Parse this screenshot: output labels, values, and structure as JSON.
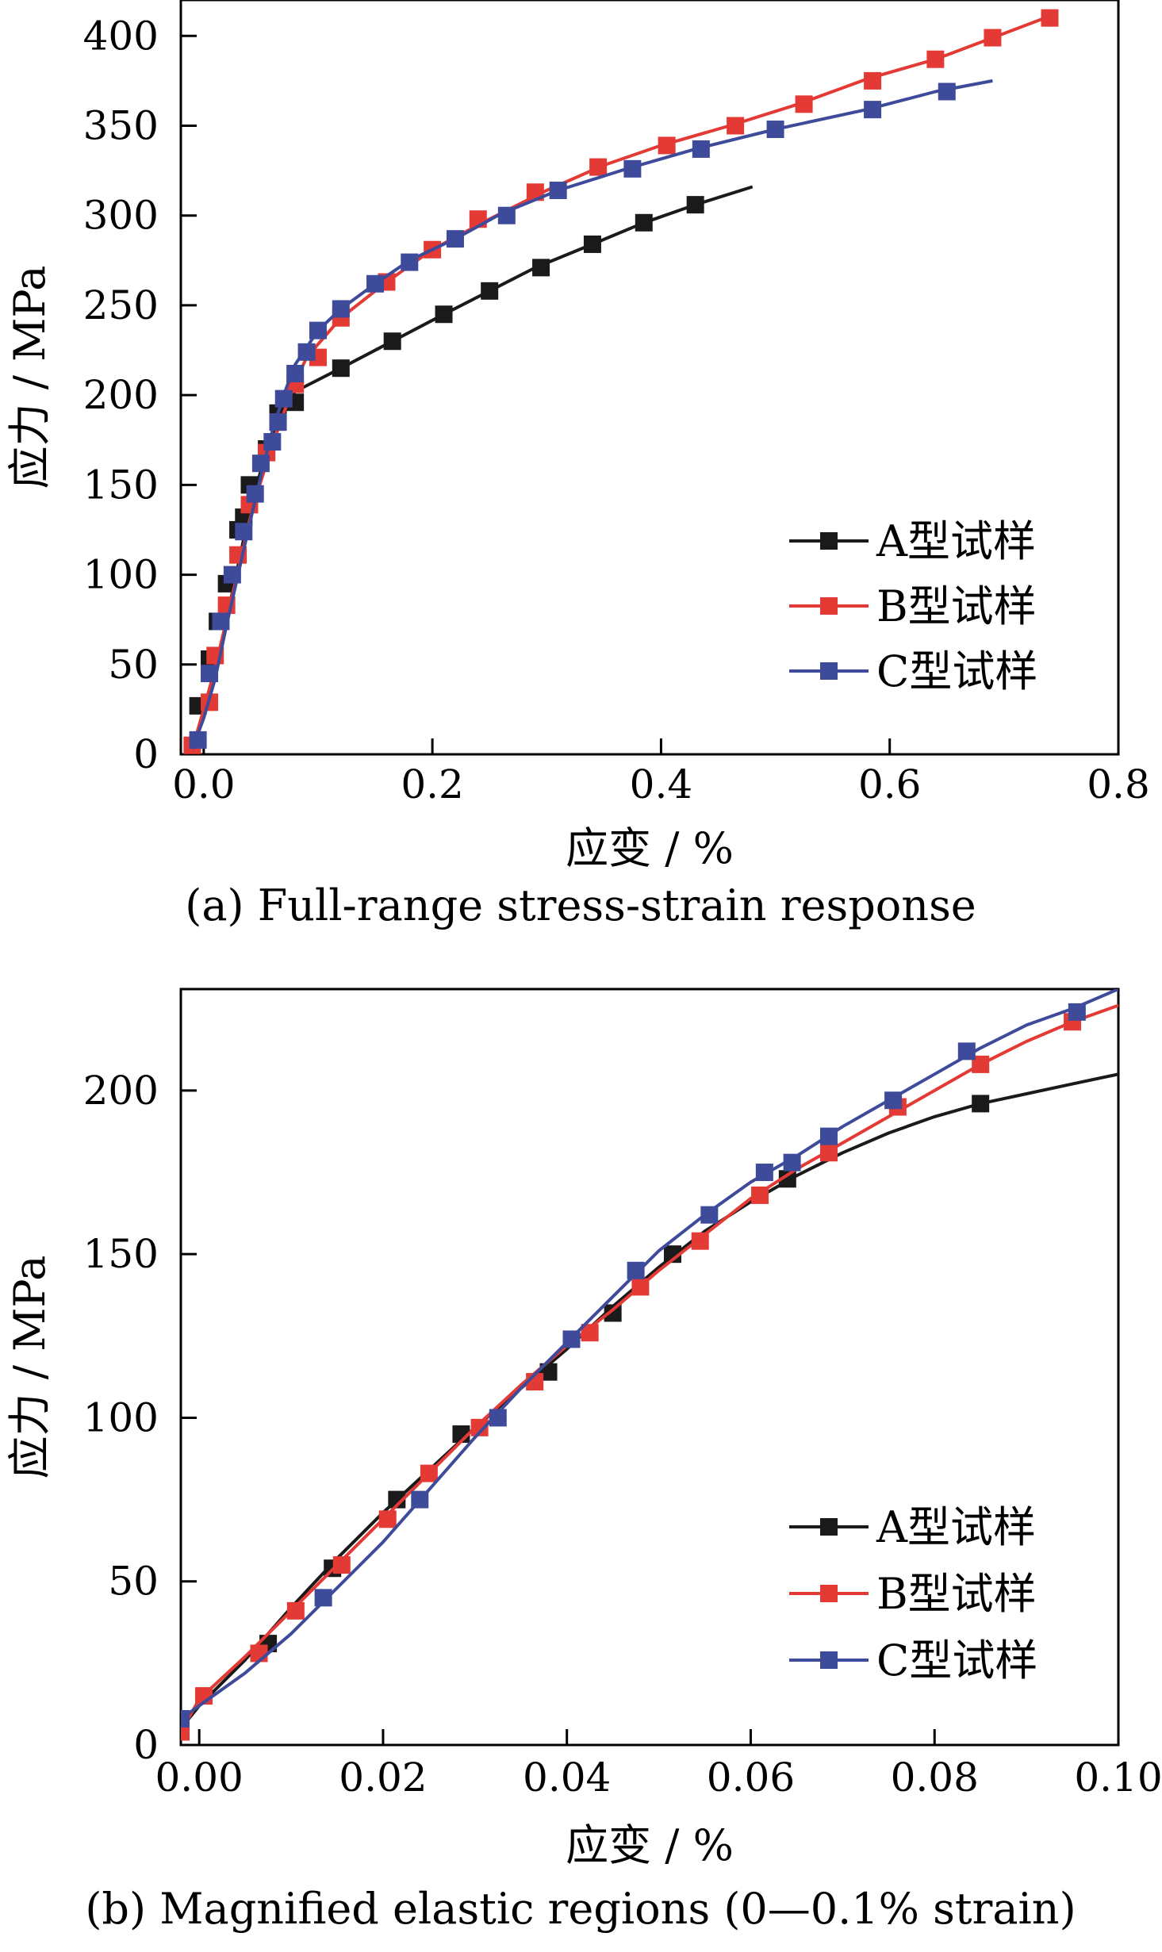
{
  "chart_data": [
    {
      "type": "line",
      "caption": "(a) Full-range stress-strain response",
      "xlabel": "应变 / %",
      "ylabel": "应力 / MPa",
      "xlim": [
        -0.02,
        0.8
      ],
      "ylim": [
        0,
        420
      ],
      "xticks": [
        "0.0",
        "0.2",
        "0.4",
        "0.6",
        "0.8"
      ],
      "xtick_values": [
        0,
        0.2,
        0.4,
        0.6,
        0.8
      ],
      "yticks": [
        "0",
        "50",
        "100",
        "150",
        "200",
        "250",
        "300",
        "350",
        "400"
      ],
      "ytick_values": [
        0,
        50,
        100,
        150,
        200,
        250,
        300,
        350,
        400
      ],
      "legend_position": "bottom-right",
      "grid": false,
      "series": [
        {
          "name": "A型试样",
          "color": "#1a1a1a",
          "line": [
            [
              -0.01,
              3
            ],
            [
              0.0,
              22
            ],
            [
              0.01,
              45
            ],
            [
              0.02,
              75
            ],
            [
              0.03,
              105
            ],
            [
              0.04,
              135
            ],
            [
              0.05,
              158
            ],
            [
              0.06,
              178
            ],
            [
              0.07,
              193
            ],
            [
              0.08,
              202
            ],
            [
              0.12,
              215
            ],
            [
              0.165,
              230
            ],
            [
              0.21,
              245
            ],
            [
              0.25,
              258
            ],
            [
              0.29,
              271
            ],
            [
              0.34,
              284
            ],
            [
              0.385,
              296
            ],
            [
              0.43,
              306
            ],
            [
              0.48,
              316
            ]
          ],
          "markers": [
            [
              -0.005,
              27
            ],
            [
              0.005,
              53
            ],
            [
              0.012,
              74
            ],
            [
              0.02,
              95
            ],
            [
              0.03,
              125
            ],
            [
              0.035,
              132
            ],
            [
              0.04,
              150
            ],
            [
              0.055,
              170
            ],
            [
              0.065,
              190
            ],
            [
              0.08,
              196
            ],
            [
              0.12,
              215
            ],
            [
              0.165,
              230
            ],
            [
              0.21,
              245
            ],
            [
              0.25,
              258
            ],
            [
              0.295,
              271
            ],
            [
              0.34,
              284
            ],
            [
              0.385,
              296
            ],
            [
              0.43,
              306
            ]
          ]
        },
        {
          "name": "B型试样",
          "color": "#e43a35",
          "line": [
            [
              -0.01,
              3
            ],
            [
              0.0,
              25
            ],
            [
              0.01,
              48
            ],
            [
              0.02,
              75
            ],
            [
              0.03,
              102
            ],
            [
              0.04,
              130
            ],
            [
              0.05,
              152
            ],
            [
              0.06,
              172
            ],
            [
              0.07,
              190
            ],
            [
              0.08,
              207
            ],
            [
              0.09,
              221
            ],
            [
              0.12,
              243
            ],
            [
              0.16,
              263
            ],
            [
              0.2,
              281
            ],
            [
              0.25,
              298
            ],
            [
              0.3,
              314
            ],
            [
              0.35,
              328
            ],
            [
              0.4,
              339
            ],
            [
              0.46,
              350
            ],
            [
              0.52,
              362
            ],
            [
              0.58,
              376
            ],
            [
              0.64,
              387
            ],
            [
              0.69,
              399
            ],
            [
              0.74,
              411
            ]
          ],
          "markers": [
            [
              -0.01,
              5
            ],
            [
              0.005,
              29
            ],
            [
              0.01,
              55
            ],
            [
              0.02,
              83
            ],
            [
              0.03,
              111
            ],
            [
              0.04,
              139
            ],
            [
              0.055,
              168
            ],
            [
              0.065,
              185
            ],
            [
              0.08,
              206
            ],
            [
              0.1,
              221
            ],
            [
              0.12,
              243
            ],
            [
              0.16,
              263
            ],
            [
              0.2,
              281
            ],
            [
              0.24,
              298
            ],
            [
              0.29,
              313
            ],
            [
              0.345,
              327
            ],
            [
              0.405,
              339
            ],
            [
              0.465,
              350
            ],
            [
              0.525,
              362
            ],
            [
              0.585,
              375
            ],
            [
              0.64,
              387
            ],
            [
              0.69,
              399
            ],
            [
              0.74,
              410
            ]
          ]
        },
        {
          "name": "C型试样",
          "color": "#3e4a9a",
          "line": [
            [
              -0.01,
              3
            ],
            [
              0.0,
              20
            ],
            [
              0.01,
              42
            ],
            [
              0.02,
              72
            ],
            [
              0.03,
              100
            ],
            [
              0.04,
              128
            ],
            [
              0.05,
              155
            ],
            [
              0.06,
              180
            ],
            [
              0.07,
              200
            ],
            [
              0.08,
              217
            ],
            [
              0.1,
              236
            ],
            [
              0.12,
              248
            ],
            [
              0.15,
              262
            ],
            [
              0.18,
              275
            ],
            [
              0.22,
              287
            ],
            [
              0.26,
              301
            ],
            [
              0.31,
              314
            ],
            [
              0.37,
              326
            ],
            [
              0.43,
              337
            ],
            [
              0.5,
              348
            ],
            [
              0.58,
              359
            ],
            [
              0.64,
              369
            ],
            [
              0.69,
              375
            ]
          ],
          "markers": [
            [
              -0.005,
              8
            ],
            [
              0.005,
              45
            ],
            [
              0.015,
              74
            ],
            [
              0.025,
              100
            ],
            [
              0.035,
              124
            ],
            [
              0.045,
              145
            ],
            [
              0.05,
              162
            ],
            [
              0.06,
              174
            ],
            [
              0.065,
              185
            ],
            [
              0.07,
              198
            ],
            [
              0.08,
              212
            ],
            [
              0.09,
              224
            ],
            [
              0.1,
              236
            ],
            [
              0.12,
              248
            ],
            [
              0.15,
              262
            ],
            [
              0.18,
              274
            ],
            [
              0.22,
              287
            ],
            [
              0.265,
              300
            ],
            [
              0.31,
              314
            ],
            [
              0.375,
              326
            ],
            [
              0.435,
              337
            ],
            [
              0.5,
              348
            ],
            [
              0.585,
              359
            ],
            [
              0.65,
              369
            ]
          ]
        }
      ]
    },
    {
      "type": "line",
      "caption": "(b) Magnified elastic regions (0—0.1% strain)",
      "xlabel": "应变 / %",
      "ylabel": "应力 / MPa",
      "xlim": [
        -0.002,
        0.1
      ],
      "ylim": [
        0,
        231
      ],
      "xticks": [
        "0.00",
        "0.02",
        "0.04",
        "0.06",
        "0.08",
        "0.10"
      ],
      "xtick_values": [
        0,
        0.02,
        0.04,
        0.06,
        0.08,
        0.1
      ],
      "yticks": [
        "0",
        "50",
        "100",
        "150",
        "200"
      ],
      "ytick_values": [
        0,
        50,
        100,
        150,
        200
      ],
      "legend_position": "bottom-right",
      "grid": false,
      "series": [
        {
          "name": "A型试样",
          "color": "#1a1a1a",
          "line": [
            [
              -0.002,
              5
            ],
            [
              0.0,
              12
            ],
            [
              0.005,
              26
            ],
            [
              0.01,
              42
            ],
            [
              0.015,
              57
            ],
            [
              0.02,
              71
            ],
            [
              0.025,
              84
            ],
            [
              0.03,
              97
            ],
            [
              0.035,
              109
            ],
            [
              0.04,
              121
            ],
            [
              0.045,
              134
            ],
            [
              0.05,
              146
            ],
            [
              0.055,
              157
            ],
            [
              0.06,
              166
            ],
            [
              0.065,
              174
            ],
            [
              0.07,
              181
            ],
            [
              0.075,
              187
            ],
            [
              0.08,
              192
            ],
            [
              0.085,
              196
            ],
            [
              0.09,
              199
            ],
            [
              0.095,
              202
            ],
            [
              0.1,
              205
            ]
          ],
          "markers": [
            [
              0.0075,
              31
            ],
            [
              0.0145,
              54
            ],
            [
              0.0215,
              75
            ],
            [
              0.0285,
              95
            ],
            [
              0.038,
              114
            ],
            [
              0.045,
              132
            ],
            [
              0.0515,
              150
            ],
            [
              0.064,
              173
            ],
            [
              0.085,
              196
            ]
          ]
        },
        {
          "name": "B型试样",
          "color": "#e43a35",
          "line": [
            [
              -0.002,
              4
            ],
            [
              0.0,
              14
            ],
            [
              0.005,
              27
            ],
            [
              0.01,
              41
            ],
            [
              0.015,
              55
            ],
            [
              0.02,
              69
            ],
            [
              0.025,
              83
            ],
            [
              0.03,
              97
            ],
            [
              0.035,
              110
            ],
            [
              0.04,
              122
            ],
            [
              0.045,
              133
            ],
            [
              0.05,
              145
            ],
            [
              0.055,
              156
            ],
            [
              0.06,
              167
            ],
            [
              0.065,
              176
            ],
            [
              0.07,
              184
            ],
            [
              0.075,
              192
            ],
            [
              0.08,
              200
            ],
            [
              0.085,
              208
            ],
            [
              0.09,
              215
            ],
            [
              0.095,
              221
            ],
            [
              0.1,
              226
            ]
          ],
          "markers": [
            [
              -0.002,
              4
            ],
            [
              0.0005,
              15
            ],
            [
              0.0065,
              28
            ],
            [
              0.0105,
              41
            ],
            [
              0.0155,
              55
            ],
            [
              0.0205,
              69
            ],
            [
              0.025,
              83
            ],
            [
              0.0305,
              97
            ],
            [
              0.0365,
              111
            ],
            [
              0.0425,
              126
            ],
            [
              0.048,
              140
            ],
            [
              0.0545,
              154
            ],
            [
              0.061,
              168
            ],
            [
              0.0685,
              181
            ],
            [
              0.076,
              195
            ],
            [
              0.085,
              208
            ],
            [
              0.095,
              221
            ]
          ]
        },
        {
          "name": "C型试样",
          "color": "#3e4a9a",
          "line": [
            [
              -0.002,
              8
            ],
            [
              0.0,
              12
            ],
            [
              0.005,
              22
            ],
            [
              0.01,
              34
            ],
            [
              0.015,
              48
            ],
            [
              0.02,
              62
            ],
            [
              0.025,
              78
            ],
            [
              0.03,
              94
            ],
            [
              0.035,
              109
            ],
            [
              0.04,
              123
            ],
            [
              0.045,
              137
            ],
            [
              0.05,
              151
            ],
            [
              0.055,
              162
            ],
            [
              0.06,
              172
            ],
            [
              0.065,
              180
            ],
            [
              0.07,
              189
            ],
            [
              0.075,
              197
            ],
            [
              0.08,
              205
            ],
            [
              0.085,
              213
            ],
            [
              0.09,
              220
            ],
            [
              0.095,
              225
            ],
            [
              0.1,
              231
            ]
          ],
          "markers": [
            [
              -0.002,
              8
            ],
            [
              0.0135,
              45
            ],
            [
              0.024,
              75
            ],
            [
              0.0325,
              100
            ],
            [
              0.0405,
              124
            ],
            [
              0.0475,
              145
            ],
            [
              0.0555,
              162
            ],
            [
              0.0615,
              175
            ],
            [
              0.0645,
              178
            ],
            [
              0.0685,
              186
            ],
            [
              0.0755,
              197
            ],
            [
              0.0835,
              212
            ],
            [
              0.0955,
              224
            ]
          ]
        }
      ]
    }
  ]
}
